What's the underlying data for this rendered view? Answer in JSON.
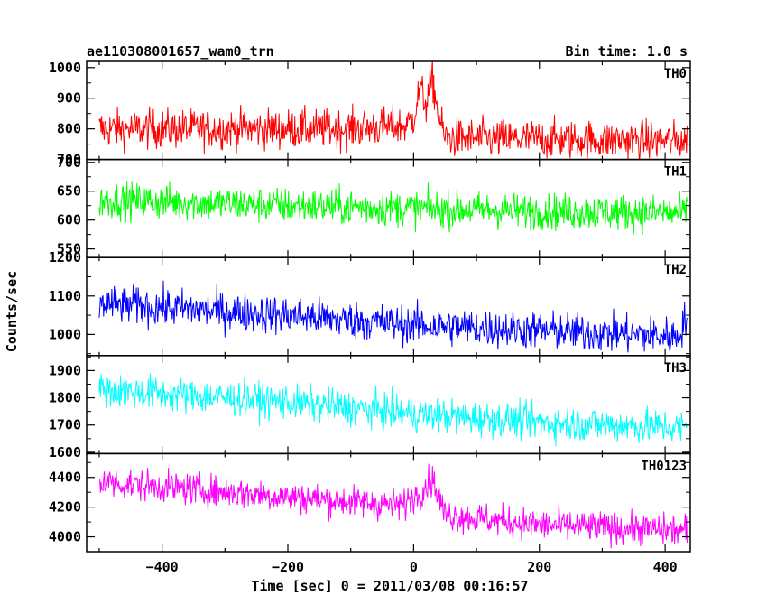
{
  "chart_data": {
    "type": "line",
    "title": "ae110308001657_wam0_trn",
    "bin_time": "Bin time: 1.0 s",
    "xlabel": "Time [sec] 0 = 2011/03/08 00:16:57",
    "ylabel": "Counts/sec",
    "xlim": [
      -520,
      440
    ],
    "x_range_data": [
      -500,
      435
    ],
    "x_ticks": [
      -400,
      -200,
      0,
      200,
      400
    ],
    "panels": [
      {
        "name": "TH0",
        "color": "#ff0000",
        "ylim": [
          700,
          1020
        ],
        "y_ticks": [
          700,
          800,
          900,
          1000
        ],
        "mean_points": [
          [
            -500,
            800
          ],
          [
            -100,
            800
          ],
          [
            -10,
            810
          ],
          [
            0,
            840
          ],
          [
            10,
            930
          ],
          [
            20,
            880
          ],
          [
            30,
            960
          ],
          [
            40,
            840
          ],
          [
            50,
            770
          ],
          [
            435,
            760
          ]
        ],
        "noise": 45
      },
      {
        "name": "TH1",
        "color": "#00ff00",
        "ylim": [
          535,
          705
        ],
        "y_ticks": [
          550,
          600,
          650,
          700
        ],
        "mean_points": [
          [
            -500,
            635
          ],
          [
            -200,
            625
          ],
          [
            0,
            620
          ],
          [
            200,
            615
          ],
          [
            435,
            612
          ]
        ],
        "noise": 22
      },
      {
        "name": "TH2",
        "color": "#0000ff",
        "ylim": [
          945,
          1200
        ],
        "y_ticks": [
          1000,
          1100,
          1200
        ],
        "mean_points": [
          [
            -500,
            1080
          ],
          [
            -200,
            1050
          ],
          [
            0,
            1025
          ],
          [
            200,
            1010
          ],
          [
            420,
            995
          ],
          [
            435,
            1050
          ]
        ],
        "noise": 35
      },
      {
        "name": "TH3",
        "color": "#00ffff",
        "ylim": [
          1595,
          1955
        ],
        "y_ticks": [
          1600,
          1700,
          1800,
          1900
        ],
        "mean_points": [
          [
            -500,
            1830
          ],
          [
            -200,
            1785
          ],
          [
            0,
            1740
          ],
          [
            200,
            1710
          ],
          [
            435,
            1690
          ]
        ],
        "noise": 45
      },
      {
        "name": "TH0123",
        "color": "#ff00ff",
        "ylim": [
          3900,
          4560
        ],
        "y_ticks": [
          4000,
          4200,
          4400
        ],
        "mean_points": [
          [
            -500,
            4370
          ],
          [
            -200,
            4270
          ],
          [
            -20,
            4210
          ],
          [
            10,
            4300
          ],
          [
            30,
            4390
          ],
          [
            50,
            4150
          ],
          [
            200,
            4080
          ],
          [
            435,
            4040
          ]
        ],
        "noise": 75
      }
    ]
  }
}
